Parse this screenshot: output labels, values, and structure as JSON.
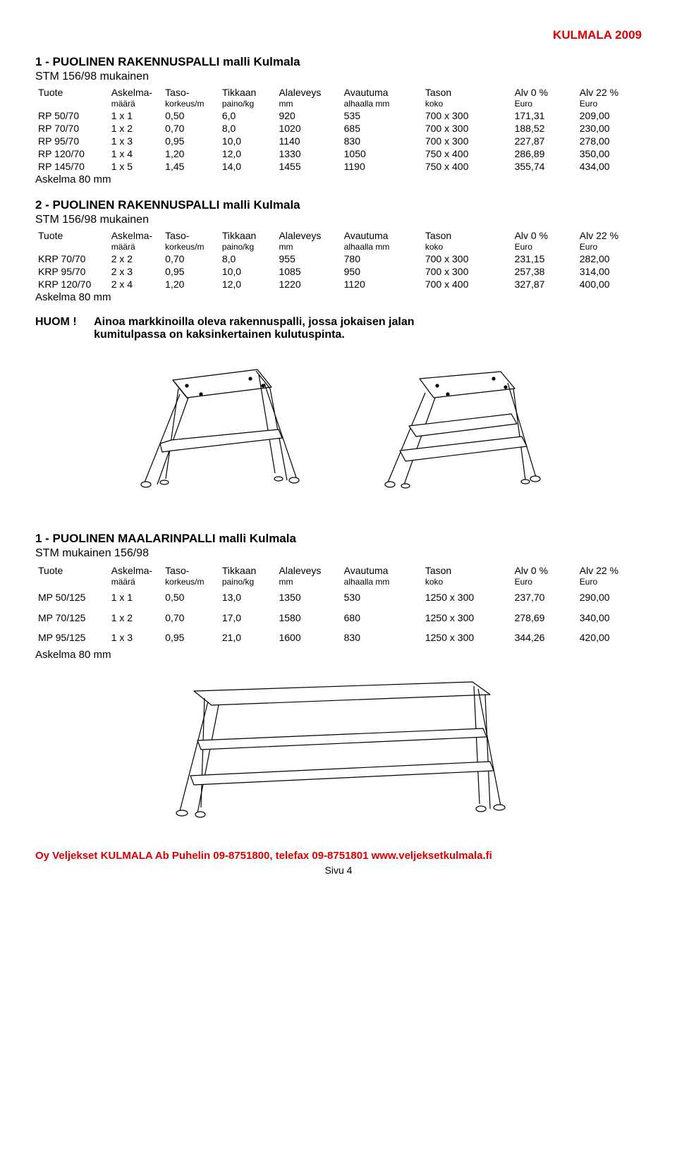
{
  "header_right": "KULMALA  2009",
  "col_headers": {
    "c0a": "Tuote",
    "c0b": "",
    "c1a": "Askelma-",
    "c1b": "määrä",
    "c2a": "Taso-",
    "c2b": "korkeus/m",
    "c3a": "Tikkaan",
    "c3b": "paino/kg",
    "c4a": "Alaleveys",
    "c4b": "mm",
    "c5a": "Avautuma",
    "c5b": "alhaalla mm",
    "c6a": "Tason",
    "c6b": "koko",
    "c7a": "Alv 0 %",
    "c7b": "Euro",
    "c8a": "Alv 22 %",
    "c8b": "Euro"
  },
  "askelma": "Askelma 80 mm",
  "section1": {
    "title": "1 - PUOLINEN RAKENNUSPALLI  malli Kulmala",
    "subtitle": "STM 156/98 mukainen",
    "rows": [
      [
        "RP 50/70",
        "1 x 1",
        "0,50",
        "6,0",
        "920",
        "535",
        "700 x 300",
        "171,31",
        "209,00"
      ],
      [
        "RP 70/70",
        "1 x 2",
        "0,70",
        "8,0",
        "1020",
        "685",
        "700 x 300",
        "188,52",
        "230,00"
      ],
      [
        "RP 95/70",
        "1 x 3",
        "0,95",
        "10,0",
        "1140",
        "830",
        "700 x 300",
        "227,87",
        "278,00"
      ],
      [
        "RP 120/70",
        "1 x 4",
        "1,20",
        "12,0",
        "1330",
        "1050",
        "750 x 400",
        "286,89",
        "350,00"
      ],
      [
        "RP 145/70",
        "1 x 5",
        "1,45",
        "14,0",
        "1455",
        "1190",
        "750 x 400",
        "355,74",
        "434,00"
      ]
    ]
  },
  "section2": {
    "title": "2 - PUOLINEN RAKENNUSPALLI  malli Kulmala",
    "subtitle": "STM 156/98 mukainen",
    "rows": [
      [
        "KRP 70/70",
        "2 x 2",
        "0,70",
        "8,0",
        "955",
        "780",
        "700 x 300",
        "231,15",
        "282,00"
      ],
      [
        "KRP 95/70",
        "2 x 3",
        "0,95",
        "10,0",
        "1085",
        "950",
        "700 x 300",
        "257,38",
        "314,00"
      ],
      [
        "KRP 120/70",
        "2 x 4",
        "1,20",
        "12,0",
        "1220",
        "1120",
        "700 x 400",
        "327,87",
        "400,00"
      ]
    ]
  },
  "huom": {
    "label": "HUOM !",
    "line1": "Ainoa markkinoilla oleva rakennuspalli, jossa jokaisen jalan",
    "line2": "kumitulpassa on kaksinkertainen kulutuspinta."
  },
  "section3": {
    "title": "1 - PUOLINEN MAALARINPALLI  malli Kulmala",
    "subtitle": "STM mukainen 156/98",
    "rows": [
      [
        "MP 50/125",
        "1 x 1",
        "0,50",
        "13,0",
        "1350",
        "530",
        "1250 x 300",
        "237,70",
        "290,00"
      ],
      [
        "MP 70/125",
        "1 x 2",
        "0,70",
        "17,0",
        "1580",
        "680",
        "1250 x 300",
        "278,69",
        "340,00"
      ],
      [
        "MP 95/125",
        "1 x 3",
        "0,95",
        "21,0",
        "1600",
        "830",
        "1250 x 300",
        "344,26",
        "420,00"
      ]
    ]
  },
  "footer": "Oy Veljekset KULMALA Ab  Puhelin 09-8751800, telefax 09-8751801  www.veljeksetkulmala.fi",
  "page_num": "Sivu 4"
}
